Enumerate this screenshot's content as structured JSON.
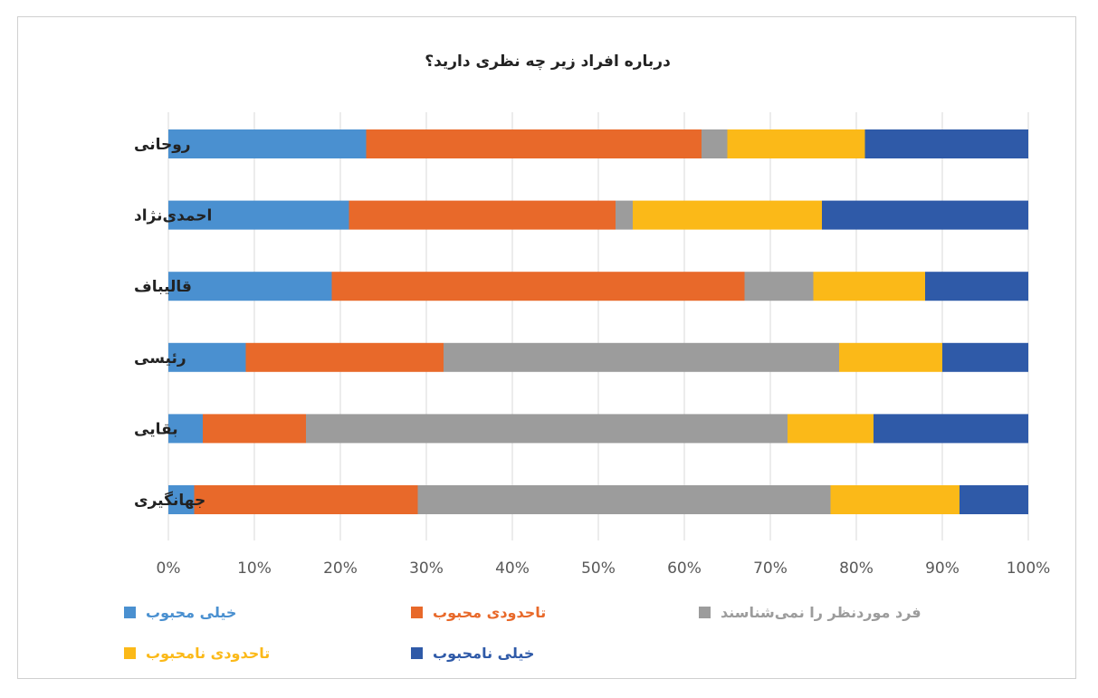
{
  "chart_data": {
    "type": "bar",
    "orientation": "horizontal",
    "stacked": "percent",
    "title": "درباره افراد زیر چه نظری دارید؟",
    "categories": [
      "روحانی",
      "احمدی‌نژاد",
      "قالیباف",
      "رئیسی",
      "بقایی",
      "جهانگیری"
    ],
    "series": [
      {
        "name": "خیلی محبوب",
        "color": "#4a90d0",
        "values": [
          23,
          21,
          19,
          9,
          4,
          3
        ]
      },
      {
        "name": "تاحدودی محبوب",
        "color": "#e8692a",
        "values": [
          39,
          31,
          48,
          23,
          12,
          26
        ]
      },
      {
        "name": "فرد موردنظر را نمی‌شناسند",
        "color": "#9c9c9c",
        "values": [
          3,
          2,
          8,
          46,
          56,
          48
        ]
      },
      {
        "name": "تاحدودی نامحبوب",
        "color": "#fbb918",
        "values": [
          16,
          22,
          13,
          12,
          10,
          15
        ]
      },
      {
        "name": "خیلی نامحبوب",
        "color": "#2f5aa8",
        "values": [
          19,
          24,
          12,
          10,
          18,
          8
        ]
      }
    ],
    "x_ticks": [
      "0%",
      "10%",
      "20%",
      "30%",
      "40%",
      "50%",
      "60%",
      "70%",
      "80%",
      "90%",
      "100%"
    ],
    "xlim": [
      0,
      100
    ],
    "grid": "vertical",
    "legend_position": "bottom"
  }
}
